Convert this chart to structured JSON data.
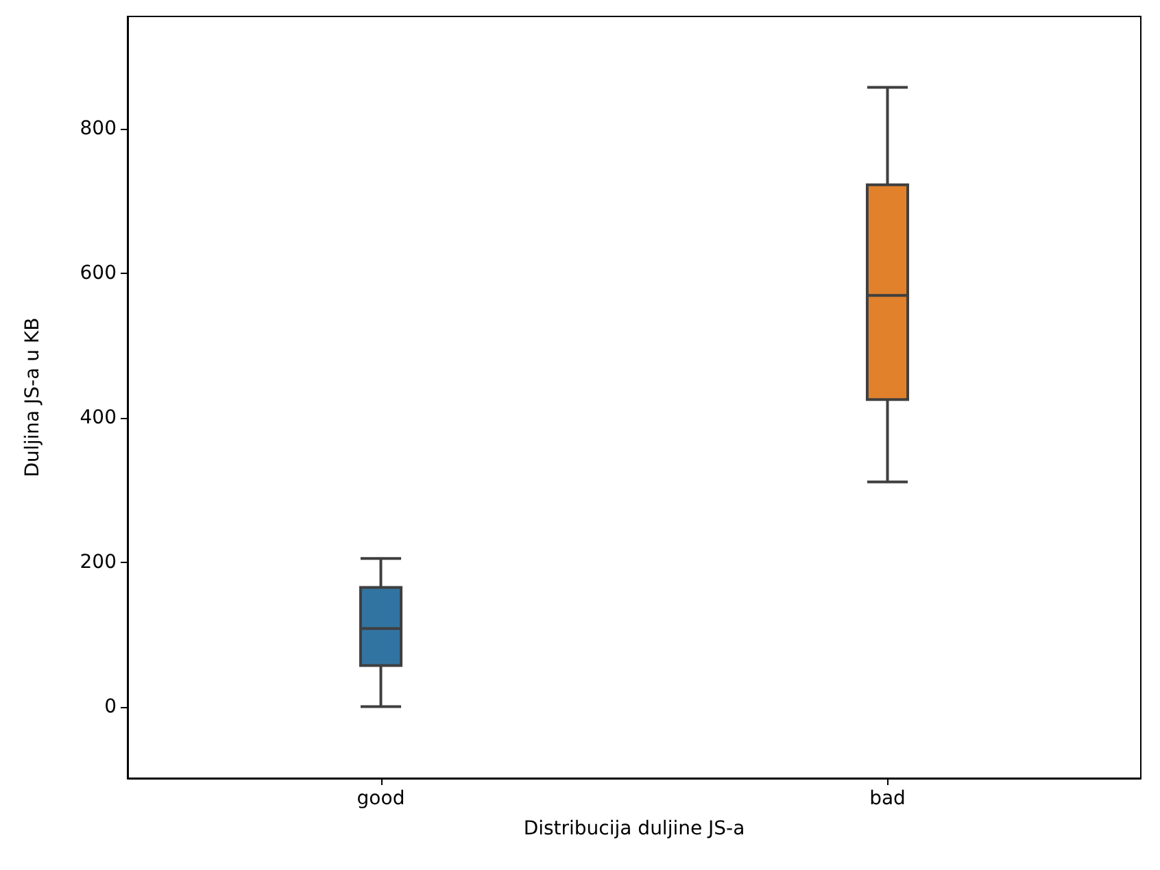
{
  "chart_data": {
    "type": "box",
    "xlabel": "Distribucija duljine JS-a",
    "ylabel": "Duljina JS-a u KB",
    "categories": [
      "good",
      "bad"
    ],
    "colors": [
      "#3274a1",
      "#e1812c"
    ],
    "boxes": [
      {
        "low": 0,
        "q1": 57,
        "median": 108,
        "q3": 165,
        "high": 205
      },
      {
        "low": 311,
        "q1": 425,
        "median": 569,
        "q3": 722,
        "high": 857
      }
    ],
    "ylim": [
      -99,
      955
    ],
    "yticks": [
      0,
      200,
      400,
      600,
      800
    ],
    "grid": false
  }
}
